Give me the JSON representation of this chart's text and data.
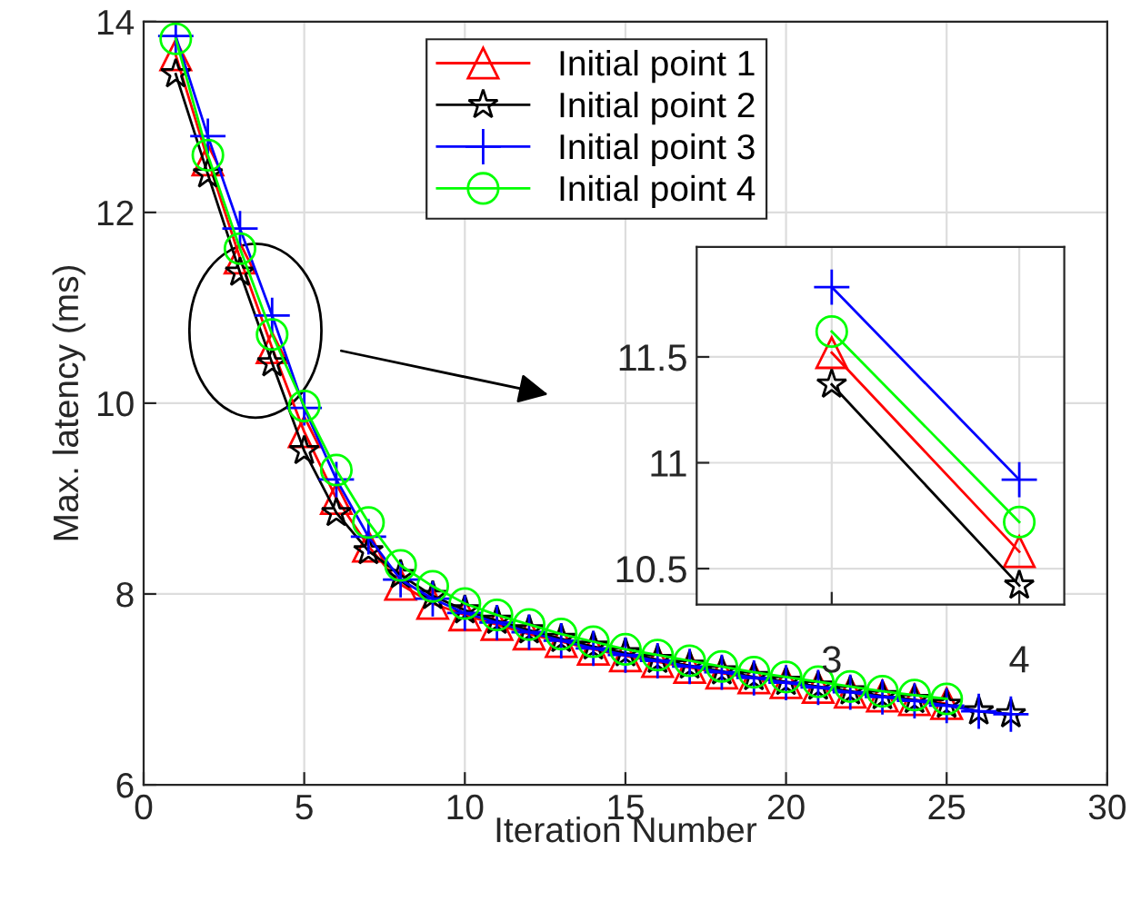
{
  "chart_data": [
    {
      "type": "line",
      "xlabel": "Iteration Number",
      "ylabel": "Max. latency (ms)",
      "xlim": [
        0,
        30
      ],
      "ylim": [
        6,
        14
      ],
      "xticks": [
        0,
        5,
        10,
        15,
        20,
        25,
        30
      ],
      "yticks": [
        6,
        8,
        10,
        12,
        14
      ],
      "grid": true,
      "legend": "top",
      "line_style": "solid",
      "series": [
        {
          "name": "Initial point 1",
          "color": "#ff0000",
          "marker": "triangle",
          "x": [
            1,
            2,
            3,
            4,
            5,
            6,
            7,
            8,
            9,
            10,
            11,
            12,
            13,
            14,
            15,
            16,
            17,
            18,
            19,
            20,
            21,
            22,
            23,
            24,
            25
          ],
          "values": [
            13.65,
            12.55,
            11.52,
            10.58,
            9.7,
            9.0,
            8.5,
            8.1,
            7.9,
            7.78,
            7.68,
            7.58,
            7.5,
            7.42,
            7.35,
            7.29,
            7.23,
            7.17,
            7.12,
            7.07,
            7.02,
            6.97,
            6.93,
            6.89,
            6.85
          ]
        },
        {
          "name": "Initial point 2",
          "color": "#000000",
          "marker": "star",
          "x": [
            1,
            2,
            3,
            4,
            5,
            6,
            7,
            8,
            9,
            10,
            11,
            12,
            13,
            14,
            15,
            16,
            17,
            18,
            19,
            20,
            21,
            22,
            23,
            24,
            25,
            26,
            27
          ],
          "values": [
            13.45,
            12.4,
            11.37,
            10.42,
            9.5,
            8.85,
            8.45,
            8.2,
            7.98,
            7.83,
            7.72,
            7.62,
            7.53,
            7.45,
            7.38,
            7.31,
            7.25,
            7.19,
            7.13,
            7.08,
            7.03,
            6.98,
            6.93,
            6.89,
            6.84,
            6.77,
            6.74
          ]
        },
        {
          "name": "Initial point 3",
          "color": "#0000ff",
          "marker": "cross",
          "x": [
            1,
            2,
            3,
            4,
            5,
            6,
            7,
            8,
            9,
            10,
            11,
            12,
            13,
            14,
            15,
            16,
            17,
            18,
            19,
            20,
            21,
            22,
            23,
            24,
            25,
            26,
            27
          ],
          "values": [
            13.85,
            12.8,
            11.83,
            10.92,
            9.95,
            9.2,
            8.6,
            8.15,
            7.95,
            7.8,
            7.7,
            7.6,
            7.51,
            7.43,
            7.36,
            7.3,
            7.24,
            7.18,
            7.12,
            7.07,
            7.02,
            6.97,
            6.92,
            6.88,
            6.83,
            6.77,
            6.74
          ]
        },
        {
          "name": "Initial point 4",
          "color": "#00ff00",
          "marker": "circle",
          "x": [
            1,
            2,
            3,
            4,
            5,
            6,
            7,
            8,
            9,
            10,
            11,
            12,
            13,
            14,
            15,
            16,
            17,
            18,
            19,
            20,
            21,
            22,
            23,
            24,
            25
          ],
          "values": [
            13.82,
            12.6,
            11.62,
            10.72,
            9.97,
            9.3,
            8.75,
            8.3,
            8.08,
            7.9,
            7.78,
            7.68,
            7.58,
            7.5,
            7.42,
            7.36,
            7.3,
            7.24,
            7.18,
            7.13,
            7.08,
            7.03,
            6.98,
            6.94,
            6.9
          ]
        }
      ]
    },
    {
      "type": "line",
      "xlim": [
        2.28,
        4.24
      ],
      "ylim": [
        10.33,
        12.02
      ],
      "xticks": [
        3,
        4
      ],
      "yticks": [
        10.5,
        11,
        11.5
      ],
      "grid": true,
      "line_style": "solid",
      "series": [
        {
          "color": "#ff0000",
          "marker": "triangle",
          "x": [
            3,
            4
          ],
          "values": [
            11.52,
            10.58
          ]
        },
        {
          "color": "#000000",
          "marker": "star",
          "x": [
            3,
            4
          ],
          "values": [
            11.37,
            10.42
          ]
        },
        {
          "color": "#0000ff",
          "marker": "cross",
          "x": [
            3,
            4
          ],
          "values": [
            11.83,
            10.92
          ]
        },
        {
          "color": "#00ff00",
          "marker": "circle",
          "x": [
            3,
            4
          ],
          "values": [
            11.62,
            10.72
          ]
        }
      ]
    }
  ]
}
